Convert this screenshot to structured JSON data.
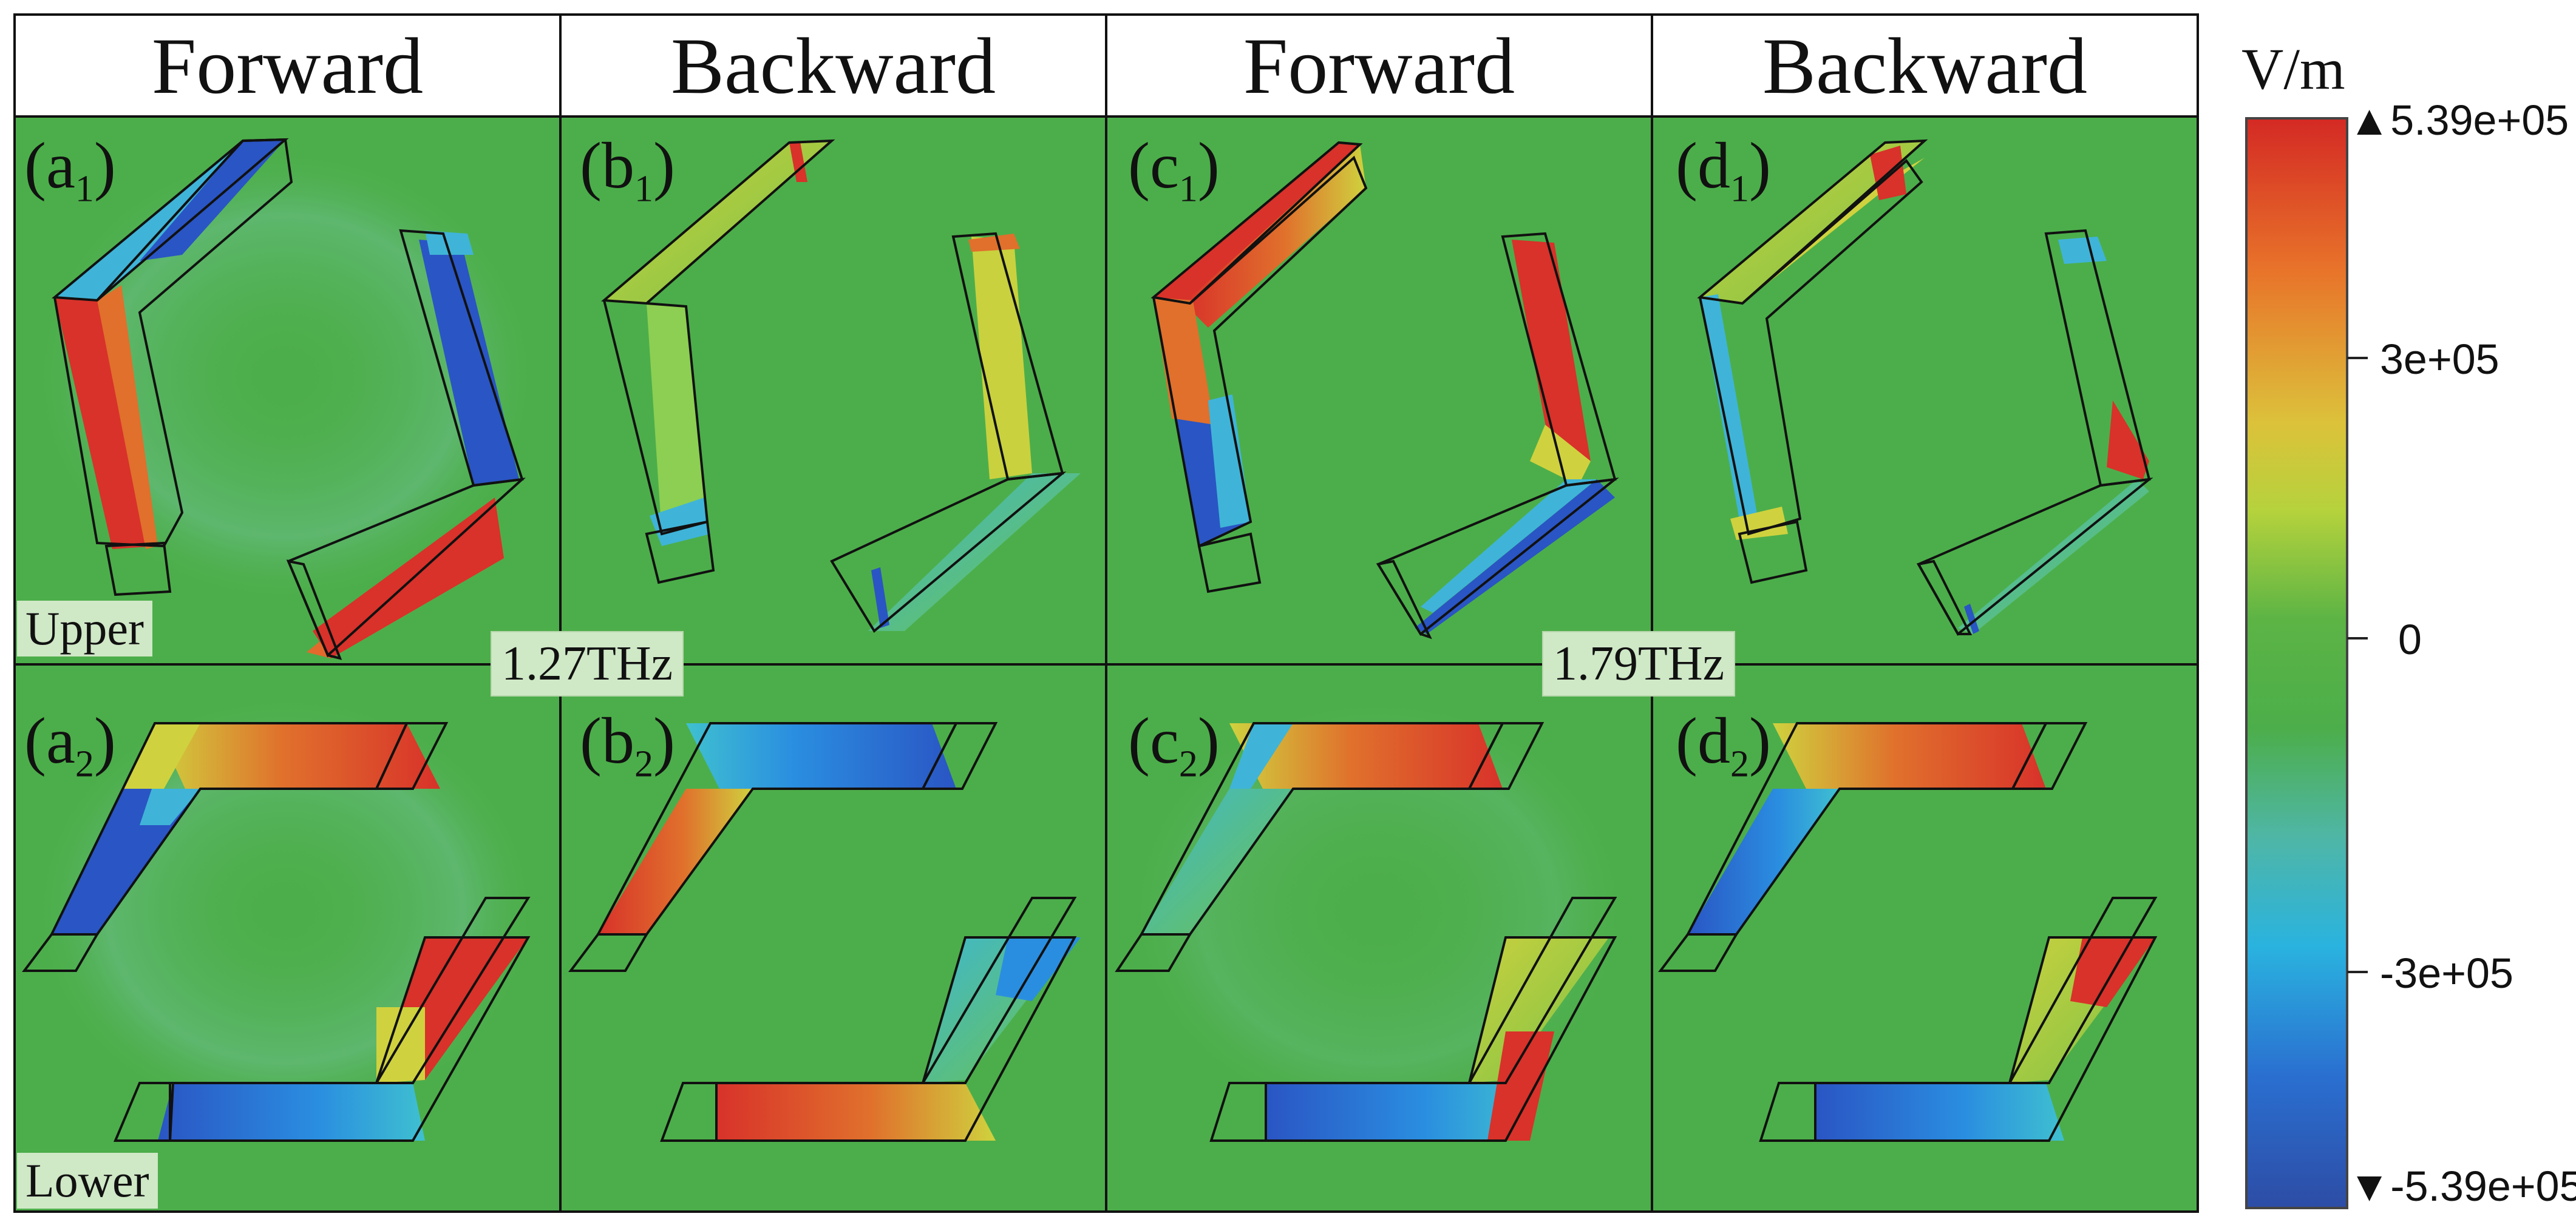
{
  "headers": [
    "Forward",
    "Backward",
    "Forward",
    "Backward"
  ],
  "panel_labels": [
    {
      "letter": "a",
      "sub": "1"
    },
    {
      "letter": "b",
      "sub": "1"
    },
    {
      "letter": "c",
      "sub": "1"
    },
    {
      "letter": "d",
      "sub": "1"
    },
    {
      "letter": "a",
      "sub": "2"
    },
    {
      "letter": "b",
      "sub": "2"
    },
    {
      "letter": "c",
      "sub": "2"
    },
    {
      "letter": "d",
      "sub": "2"
    }
  ],
  "row_labels": {
    "upper": "Upper",
    "lower": "Lower"
  },
  "frequencies": [
    "1.27THz",
    "1.79THz"
  ],
  "colorbar": {
    "unit": "V/m",
    "ticks": [
      {
        "label": "5.39e+05",
        "value": 539000
      },
      {
        "label": "3e+05",
        "value": 300000
      },
      {
        "label": "0",
        "value": 0
      },
      {
        "label": "-3e+05",
        "value": -300000
      },
      {
        "label": "-5.39e+05",
        "value": -539000
      }
    ],
    "max_marker": "▲",
    "min_marker": "▼",
    "colors": [
      "#d42a24",
      "#e8742a",
      "#dcc23b",
      "#5cb445",
      "#2ab3df",
      "#2d4da6"
    ]
  },
  "colors": {
    "background_field": "#4cae4a",
    "outline": "#111111",
    "red": "#d8322a",
    "blue": "#2a55c4",
    "yellow": "#cfd23e",
    "cyan": "#3fb4d8"
  }
}
